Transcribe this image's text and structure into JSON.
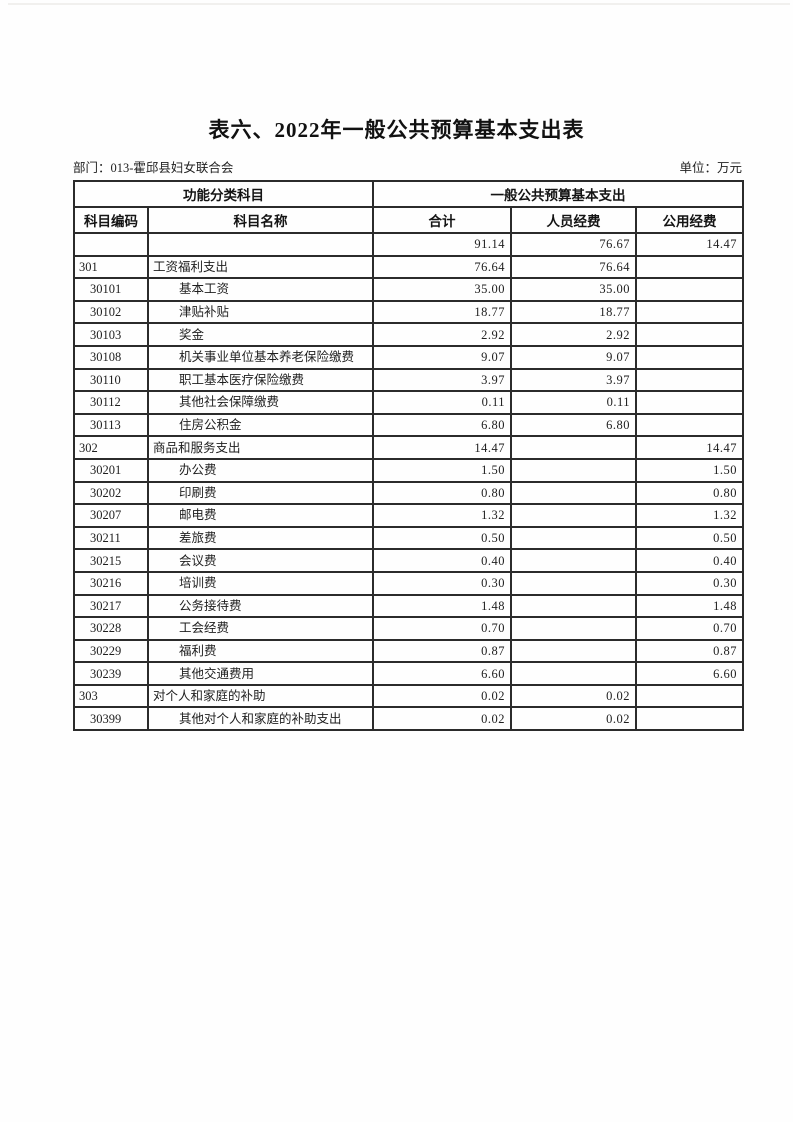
{
  "page": {
    "title": "表六、2022年一般公共预算基本支出表",
    "department_label": "部门：013-霍邱县妇女联合会",
    "unit_label": "单位：万元"
  },
  "table": {
    "header": {
      "group_left": "功能分类科目",
      "group_right": "一般公共预算基本支出",
      "columns": [
        "科目编码",
        "科目名称",
        "合计",
        "人员经费",
        "公用经费"
      ]
    },
    "rows": [
      {
        "code": "",
        "name": "",
        "total": "91.14",
        "personnel": "76.67",
        "public": "",
        "indent": false
      },
      {
        "code": "301",
        "name": "工资福利支出",
        "total": "76.64",
        "personnel": "76.64",
        "public": "",
        "indent": false
      },
      {
        "code": "30101",
        "name": "基本工资",
        "total": "35.00",
        "personnel": "35.00",
        "public": "",
        "indent": true
      },
      {
        "code": "30102",
        "name": "津贴补贴",
        "total": "18.77",
        "personnel": "18.77",
        "public": "",
        "indent": true
      },
      {
        "code": "30103",
        "name": "奖金",
        "total": "2.92",
        "personnel": "2.92",
        "public": "",
        "indent": true
      },
      {
        "code": "30108",
        "name": "机关事业单位基本养老保险缴费",
        "total": "9.07",
        "personnel": "9.07",
        "public": "",
        "indent": true
      },
      {
        "code": "30110",
        "name": "职工基本医疗保险缴费",
        "total": "3.97",
        "personnel": "3.97",
        "public": "",
        "indent": true
      },
      {
        "code": "30112",
        "name": "其他社会保障缴费",
        "total": "0.11",
        "personnel": "0.11",
        "public": "",
        "indent": true
      },
      {
        "code": "30113",
        "name": "住房公积金",
        "total": "6.80",
        "personnel": "6.80",
        "public": "",
        "indent": true
      },
      {
        "code": "302",
        "name": "商品和服务支出",
        "total": "14.47",
        "personnel": "",
        "public": "14.47",
        "indent": false
      },
      {
        "code": "30201",
        "name": "办公费",
        "total": "1.50",
        "personnel": "",
        "public": "1.50",
        "indent": true
      },
      {
        "code": "30202",
        "name": "印刷费",
        "total": "0.80",
        "personnel": "",
        "public": "0.80",
        "indent": true
      },
      {
        "code": "30207",
        "name": "邮电费",
        "total": "1.32",
        "personnel": "",
        "public": "1.32",
        "indent": true
      },
      {
        "code": "30211",
        "name": "差旅费",
        "total": "0.50",
        "personnel": "",
        "public": "0.50",
        "indent": true
      },
      {
        "code": "30215",
        "name": "会议费",
        "total": "0.40",
        "personnel": "",
        "public": "0.40",
        "indent": true
      },
      {
        "code": "30216",
        "name": "培训费",
        "total": "0.30",
        "personnel": "",
        "public": "0.30",
        "indent": true
      },
      {
        "code": "30217",
        "name": "公务接待费",
        "total": "1.48",
        "personnel": "",
        "public": "1.48",
        "indent": true
      },
      {
        "code": "30228",
        "name": "工会经费",
        "total": "0.70",
        "personnel": "",
        "public": "0.70",
        "indent": true
      },
      {
        "code": "30229",
        "name": "福利费",
        "total": "0.87",
        "personnel": "",
        "public": "0.87",
        "indent": true
      },
      {
        "code": "30239",
        "name": "其他交通费用",
        "total": "6.60",
        "personnel": "",
        "public": "6.60",
        "indent": true
      },
      {
        "code": "303",
        "name": "对个人和家庭的补助",
        "total": "0.02",
        "personnel": "0.02",
        "public": "",
        "indent": false
      },
      {
        "code": "30399",
        "name": "其他对个人和家庭的补助支出",
        "total": "0.02",
        "personnel": "0.02",
        "public": "",
        "indent": true
      }
    ],
    "totals_row_public": "14.47"
  }
}
